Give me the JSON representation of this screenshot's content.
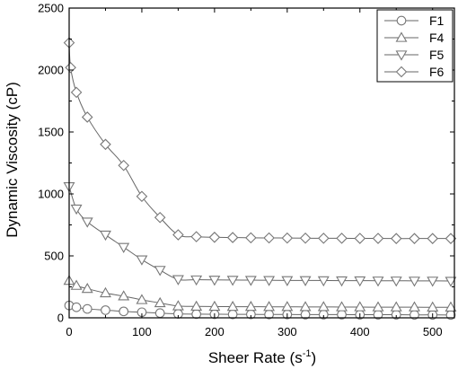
{
  "chart_data": {
    "type": "line",
    "xlabel_main": "Sheer Rate (s",
    "xlabel_sup": "-1",
    "xlabel_end": ")",
    "ylabel": "Dynamic Viscosity (cP)",
    "xlim": [
      0,
      530
    ],
    "ylim": [
      0,
      2500
    ],
    "xticks": [
      0,
      100,
      200,
      300,
      400,
      500
    ],
    "yticks": [
      0,
      500,
      1000,
      1500,
      2000,
      2500
    ],
    "legend_position": "top-right",
    "series": [
      {
        "name": "F1",
        "marker": "circle",
        "x": [
          0,
          10,
          25,
          50,
          75,
          100,
          125,
          150,
          175,
          200,
          225,
          250,
          275,
          300,
          325,
          350,
          375,
          400,
          425,
          450,
          475,
          500,
          525
        ],
        "y": [
          100,
          85,
          72,
          62,
          52,
          45,
          38,
          32,
          30,
          29,
          28,
          28,
          27,
          27,
          26,
          26,
          26,
          25,
          25,
          25,
          24,
          24,
          23
        ]
      },
      {
        "name": "F4",
        "marker": "triangle-up",
        "x": [
          0,
          10,
          25,
          50,
          75,
          100,
          125,
          150,
          175,
          200,
          225,
          250,
          275,
          300,
          325,
          350,
          375,
          400,
          425,
          450,
          475,
          500,
          525
        ],
        "y": [
          300,
          260,
          235,
          200,
          175,
          145,
          120,
          95,
          92,
          91,
          90,
          90,
          89,
          89,
          88,
          88,
          87,
          87,
          86,
          86,
          86,
          85,
          85
        ]
      },
      {
        "name": "F5",
        "marker": "triangle-down",
        "x": [
          0,
          10,
          25,
          50,
          75,
          100,
          125,
          150,
          175,
          200,
          225,
          250,
          275,
          300,
          325,
          350,
          375,
          400,
          425,
          450,
          475,
          500,
          525
        ],
        "y": [
          1060,
          880,
          775,
          670,
          570,
          470,
          385,
          310,
          308,
          306,
          305,
          304,
          303,
          302,
          302,
          301,
          300,
          300,
          299,
          299,
          298,
          298,
          297
        ]
      },
      {
        "name": "F6",
        "marker": "diamond",
        "x": [
          0,
          2,
          10,
          25,
          50,
          75,
          100,
          125,
          150,
          175,
          200,
          225,
          250,
          275,
          300,
          325,
          350,
          375,
          400,
          425,
          450,
          475,
          500,
          525
        ],
        "y": [
          2220,
          2020,
          1820,
          1620,
          1400,
          1230,
          980,
          810,
          670,
          655,
          650,
          648,
          646,
          645,
          644,
          643,
          642,
          642,
          641,
          641,
          640,
          640,
          640,
          640
        ]
      }
    ]
  }
}
